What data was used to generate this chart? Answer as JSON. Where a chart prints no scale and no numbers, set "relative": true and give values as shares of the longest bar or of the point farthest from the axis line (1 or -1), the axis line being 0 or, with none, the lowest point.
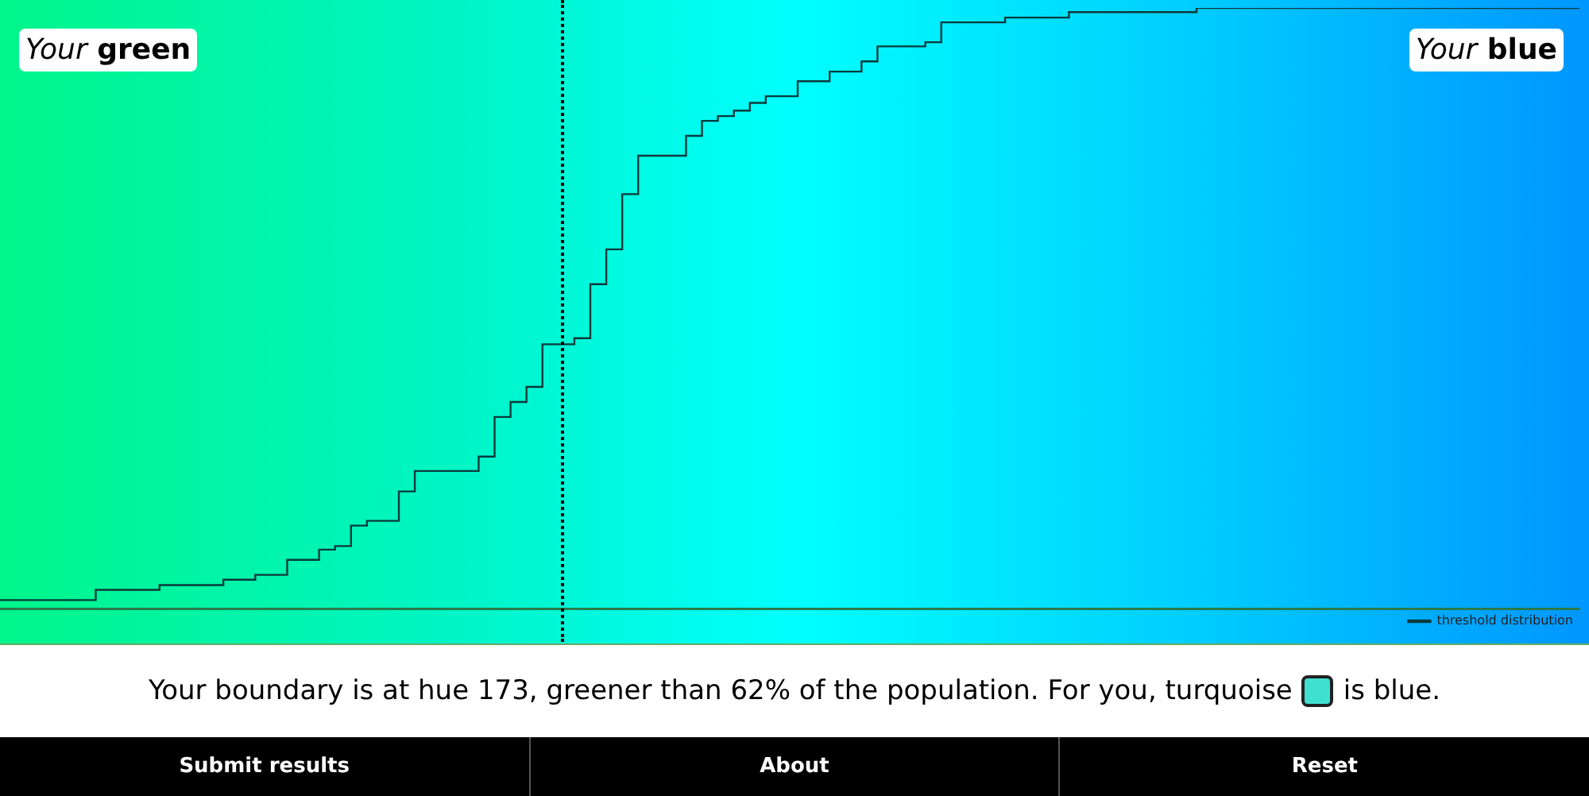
{
  "chart_data": {
    "type": "step",
    "relative": true,
    "tick_labels": false,
    "grid": false,
    "legend": "bottom right",
    "marker": "none",
    "line_style": "solid",
    "categories": [
      null,
      null,
      null,
      null,
      null,
      null,
      null,
      null,
      null,
      null,
      null,
      null,
      null,
      null,
      null,
      null,
      null,
      null,
      null,
      null,
      null,
      null,
      null,
      null,
      null,
      null,
      null,
      null,
      null,
      null,
      null,
      null,
      null,
      null,
      null,
      null,
      null,
      null,
      null,
      null,
      null,
      null,
      null,
      null,
      null,
      null,
      null,
      null,
      null,
      null,
      null,
      null,
      null,
      null,
      null,
      null,
      null,
      null,
      null,
      null,
      null,
      null,
      null,
      null,
      null,
      null,
      null,
      null,
      null,
      null,
      null,
      null,
      null,
      null,
      null,
      null,
      null,
      null,
      null,
      null,
      null,
      null,
      null,
      null,
      null,
      null,
      null,
      null,
      null,
      null,
      null,
      null,
      null,
      null,
      null,
      null,
      null,
      null,
      null,
      null
    ],
    "series": [
      {
        "name": "threshold distribution",
        "color": "#0b3a3a",
        "values": [
          0.014,
          0.014,
          0.014,
          0.014,
          0.014,
          0.014,
          0.014,
          0.031,
          0.031,
          0.031,
          0.031,
          0.039,
          0.039,
          0.039,
          0.039,
          0.048,
          0.048,
          0.056,
          0.056,
          0.081,
          0.081,
          0.098,
          0.104,
          0.138,
          0.146,
          0.146,
          0.195,
          0.229,
          0.229,
          0.229,
          0.229,
          0.253,
          0.319,
          0.344,
          0.369,
          0.44,
          0.44,
          0.45,
          0.54,
          0.598,
          0.69,
          0.754,
          0.754,
          0.754,
          0.787,
          0.812,
          0.82,
          0.829,
          0.842,
          0.853,
          0.853,
          0.878,
          0.878,
          0.894,
          0.894,
          0.911,
          0.936,
          0.936,
          0.936,
          0.943,
          0.976,
          0.976,
          0.976,
          0.976,
          0.984,
          0.984,
          0.984,
          0.984,
          0.993,
          0.993,
          0.993,
          0.993,
          0.993,
          0.993,
          0.993,
          0.993,
          1,
          1,
          1,
          1,
          1,
          1,
          1,
          1,
          1,
          1,
          1,
          1,
          1,
          1,
          1,
          1,
          1,
          1,
          1,
          1,
          1,
          1,
          1,
          1
        ]
      }
    ],
    "annotations": [
      "Your green",
      "Your blue",
      "Your boundary is at hue 173, greener than 62% of the population. For you, turquoise",
      "is blue.",
      "Submit results",
      "About",
      "Reset"
    ]
  }
}
